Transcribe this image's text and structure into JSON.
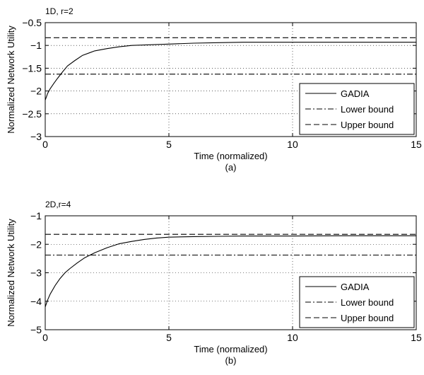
{
  "chart_data": [
    {
      "type": "line",
      "title": "1D, r=2",
      "xlabel": "Time (normalized)",
      "ylabel": "Normalized Network Utility",
      "caption": "(a)",
      "xlim": [
        0,
        15
      ],
      "ylim": [
        -3,
        -0.5
      ],
      "x_ticks": [
        0,
        5,
        10,
        15
      ],
      "x_tick_labels": [
        "0",
        "5",
        "10",
        "15"
      ],
      "y_ticks": [
        -0.5,
        -1,
        -1.5,
        -2,
        -2.5,
        -3
      ],
      "y_tick_labels": [
        "−0.5",
        "−1",
        "−1.5",
        "−2",
        "−2.5",
        "−3"
      ],
      "grid": true,
      "legend_position": "bottom-right",
      "series": [
        {
          "name": "GADIA",
          "style": "solid",
          "x": [
            0,
            0.1,
            0.2,
            0.35,
            0.5,
            0.7,
            0.9,
            1.2,
            1.5,
            2.0,
            2.5,
            3.0,
            3.5,
            4.0,
            5.0,
            6.0,
            7.0,
            8.0,
            10.0,
            12.0,
            15.0
          ],
          "y": [
            -2.2,
            -2.05,
            -1.95,
            -1.83,
            -1.72,
            -1.58,
            -1.45,
            -1.33,
            -1.22,
            -1.12,
            -1.07,
            -1.03,
            -1.0,
            -0.99,
            -0.97,
            -0.95,
            -0.94,
            -0.93,
            -0.93,
            -0.93,
            -0.93
          ]
        },
        {
          "name": "Lower bound",
          "style": "dashdot",
          "x": [
            0,
            15
          ],
          "y": [
            -1.63,
            -1.63
          ]
        },
        {
          "name": "Upper bound",
          "style": "dashed",
          "x": [
            0,
            15
          ],
          "y": [
            -0.83,
            -0.83
          ]
        }
      ]
    },
    {
      "type": "line",
      "title": "2D,r=4",
      "xlabel": "Time (normalized)",
      "ylabel": "Normalized Network Utility",
      "caption": "(b)",
      "xlim": [
        0,
        15
      ],
      "ylim": [
        -5,
        -1
      ],
      "x_ticks": [
        0,
        5,
        10,
        15
      ],
      "x_tick_labels": [
        "0",
        "5",
        "10",
        "15"
      ],
      "y_ticks": [
        -1,
        -2,
        -3,
        -4,
        -5
      ],
      "y_tick_labels": [
        "−1",
        "−2",
        "−3",
        "−4",
        "−5"
      ],
      "grid": true,
      "legend_position": "bottom-right",
      "series": [
        {
          "name": "GADIA",
          "style": "solid",
          "x": [
            0,
            0.1,
            0.2,
            0.4,
            0.6,
            0.8,
            1.0,
            1.3,
            1.6,
            2.0,
            2.5,
            3.0,
            3.5,
            4.0,
            4.5,
            5.0,
            6.0,
            7.0,
            8.0,
            10.0,
            12.0,
            15.0
          ],
          "y": [
            -4.2,
            -3.95,
            -3.75,
            -3.45,
            -3.2,
            -3.0,
            -2.85,
            -2.65,
            -2.47,
            -2.3,
            -2.12,
            -1.98,
            -1.9,
            -1.83,
            -1.78,
            -1.75,
            -1.73,
            -1.72,
            -1.71,
            -1.71,
            -1.7,
            -1.7
          ]
        },
        {
          "name": "Lower bound",
          "style": "dashdot",
          "x": [
            0,
            15
          ],
          "y": [
            -2.38,
            -2.38
          ]
        },
        {
          "name": "Upper bound",
          "style": "dashed",
          "x": [
            0,
            15
          ],
          "y": [
            -1.65,
            -1.65
          ]
        }
      ]
    }
  ]
}
